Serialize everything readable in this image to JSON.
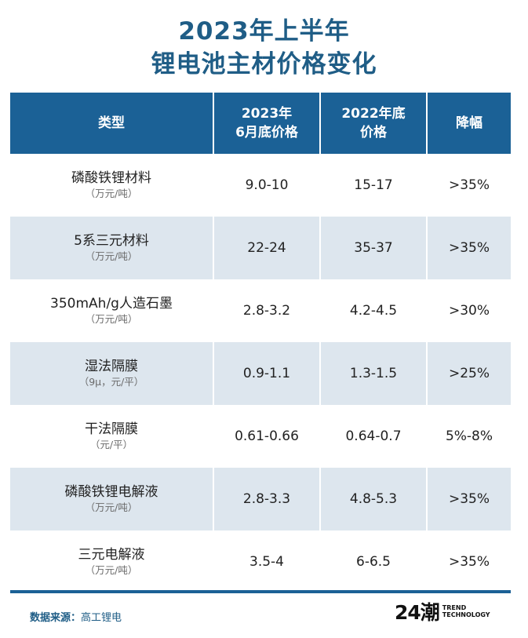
{
  "title": {
    "line1": "2023年上半年",
    "line2": "锂电池主材价格变化"
  },
  "table": {
    "headers": {
      "type": "类型",
      "jun2023_line1": "2023年",
      "jun2023_line2": "6月底价格",
      "end2022_line1": "2022年底",
      "end2022_line2": "价格",
      "drop": "降幅"
    },
    "rows": [
      {
        "name": "磷酸铁锂材料",
        "unit": "（万元/吨）",
        "jun2023": "9.0-10",
        "end2022": "15-17",
        "drop": ">35%"
      },
      {
        "name": "5系三元材料",
        "unit": "（万元/吨）",
        "jun2023": "22-24",
        "end2022": "35-37",
        "drop": ">35%"
      },
      {
        "name": "350mAh/g人造石墨",
        "unit": "（万元/吨）",
        "jun2023": "2.8-3.2",
        "end2022": "4.2-4.5",
        "drop": ">30%"
      },
      {
        "name": "湿法隔膜",
        "unit": "（9μ，元/平）",
        "jun2023": "0.9-1.1",
        "end2022": "1.3-1.5",
        "drop": ">25%"
      },
      {
        "name": "干法隔膜",
        "unit": "（元/平）",
        "jun2023": "0.61-0.66",
        "end2022": "0.64-0.7",
        "drop": "5%-8%"
      },
      {
        "name": "磷酸铁锂电解液",
        "unit": "（万元/吨）",
        "jun2023": "2.8-3.3",
        "end2022": "4.8-5.3",
        "drop": ">35%"
      },
      {
        "name": "三元电解液",
        "unit": "（万元/吨）",
        "jun2023": "3.5-4",
        "end2022": "6-6.5",
        "drop": ">35%"
      }
    ]
  },
  "footer": {
    "source_label": "数据来源：",
    "source_value": "高工锂电",
    "logo_mark": "24潮",
    "logo_line1": "TREND",
    "logo_line2": "TECHNOLOGY"
  },
  "colors": {
    "header_bg": "#1b6196",
    "title": "#1f5d86",
    "shade_row": "#dde6ee"
  }
}
